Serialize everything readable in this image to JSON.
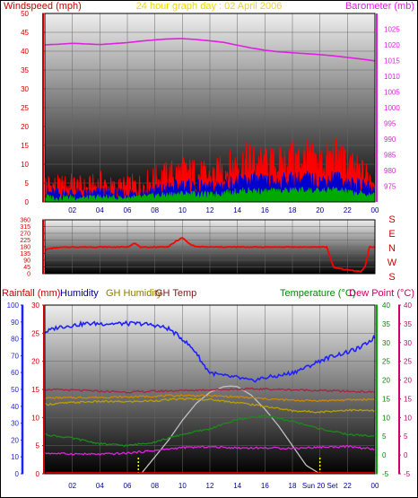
{
  "chart_data": [
    {
      "panel": "top",
      "type": "line",
      "title": "24 hour graph day : 02 April 2006",
      "left_axis_label": "Windspeed (mph)",
      "right_axis_label": "Barometer (mb)",
      "left_axis": {
        "range": [
          0,
          50
        ],
        "ticks": [
          0,
          5,
          10,
          15,
          20,
          25,
          30,
          35,
          40,
          45,
          50
        ]
      },
      "right_axis": {
        "range": [
          970,
          1030
        ],
        "ticks": [
          975,
          980,
          985,
          990,
          995,
          1000,
          1005,
          1010,
          1015,
          1020,
          1025
        ]
      },
      "x_ticks": [
        "02",
        "04",
        "06",
        "08",
        "10",
        "12",
        "14",
        "16",
        "18",
        "20",
        "22",
        "00"
      ],
      "grid": true,
      "series": [
        {
          "axis": "right",
          "color": "#e020e0",
          "x": [
            0,
            1,
            2,
            3,
            4,
            5,
            6,
            7,
            8,
            9,
            10,
            11,
            12,
            13,
            14,
            15,
            16,
            17,
            18,
            19,
            20,
            21,
            22,
            23,
            24
          ],
          "values": [
            1020.0,
            1020.2,
            1020.5,
            1020.3,
            1020.1,
            1020.4,
            1020.7,
            1021.2,
            1021.6,
            1021.9,
            1022.0,
            1021.7,
            1021.3,
            1020.8,
            1019.9,
            1019.0,
            1018.3,
            1017.8,
            1017.5,
            1017.2,
            1016.9,
            1016.5,
            1016.0,
            1015.5,
            1014.9
          ]
        },
        {
          "axis": "left",
          "color": "#ff0000",
          "x": [
            0,
            1,
            2,
            3,
            4,
            5,
            6,
            7,
            8,
            9,
            10,
            11,
            12,
            13,
            14,
            15,
            16,
            17,
            18,
            19,
            20,
            21,
            22,
            23,
            24
          ],
          "values": [
            4.5,
            3.5,
            4.0,
            3.0,
            4.5,
            3.0,
            3.5,
            4.0,
            5.5,
            6.5,
            7.5,
            7.0,
            6.0,
            8.0,
            9.5,
            10.5,
            9.0,
            9.5,
            10.5,
            11.0,
            9.5,
            11.5,
            9.0,
            7.0,
            6.0
          ]
        },
        {
          "axis": "left",
          "color": "#0000cc",
          "x": [
            0,
            1,
            2,
            3,
            4,
            5,
            6,
            7,
            8,
            9,
            10,
            11,
            12,
            13,
            14,
            15,
            16,
            17,
            18,
            19,
            20,
            21,
            22,
            23,
            24
          ],
          "values": [
            2.5,
            2.0,
            2.2,
            1.8,
            2.4,
            1.8,
            2.0,
            2.3,
            3.0,
            3.6,
            4.2,
            4.0,
            3.5,
            4.6,
            5.2,
            5.8,
            5.0,
            5.3,
            5.8,
            6.0,
            5.2,
            6.3,
            5.0,
            4.0,
            3.4
          ]
        },
        {
          "axis": "left",
          "color": "#00aa00",
          "x": [
            0,
            1,
            2,
            3,
            4,
            5,
            6,
            7,
            8,
            9,
            10,
            11,
            12,
            13,
            14,
            15,
            16,
            17,
            18,
            19,
            20,
            21,
            22,
            23,
            24
          ],
          "values": [
            1.2,
            1.0,
            1.1,
            0.9,
            1.2,
            0.9,
            1.0,
            1.1,
            1.5,
            1.8,
            2.1,
            2.0,
            1.7,
            2.3,
            2.6,
            2.9,
            2.5,
            2.7,
            2.9,
            3.0,
            2.6,
            3.1,
            2.5,
            2.0,
            1.7
          ]
        }
      ]
    },
    {
      "panel": "middle",
      "type": "line",
      "left_axis": {
        "range": [
          0,
          360
        ],
        "ticks": [
          0,
          45,
          90,
          135,
          180,
          225,
          270,
          315,
          360
        ]
      },
      "compass": [
        "S",
        "E",
        "N",
        "W",
        "S"
      ],
      "series": [
        {
          "color": "#ff0000",
          "name": "",
          "x": [
            0,
            0.5,
            1,
            2,
            3,
            4,
            5,
            6,
            6.5,
            7,
            8,
            9,
            9.5,
            10,
            10.5,
            11,
            12,
            13,
            14,
            15,
            16,
            17,
            18,
            19,
            20,
            20.5,
            21,
            22,
            23,
            23.3,
            23.6,
            24
          ],
          "values": [
            160,
            170,
            175,
            178,
            178,
            178,
            178,
            178,
            205,
            175,
            178,
            180,
            215,
            240,
            200,
            180,
            178,
            178,
            178,
            178,
            178,
            178,
            178,
            178,
            178,
            178,
            40,
            25,
            15,
            50,
            178,
            178
          ]
        }
      ]
    },
    {
      "panel": "bottom",
      "type": "line",
      "labels": [
        "Rainfall (mm)",
        "Humidity",
        "GH Humidity",
        "GH Temp",
        "Temperature (°C)",
        "Dew Point (°C)"
      ],
      "axis_humidity": {
        "range": [
          0,
          100
        ],
        "ticks": [
          0,
          10,
          20,
          30,
          40,
          50,
          60,
          70,
          80,
          90,
          100
        ]
      },
      "axis_rain": {
        "range": [
          0,
          30
        ],
        "ticks": [
          0,
          5,
          10,
          15,
          20,
          25,
          30
        ]
      },
      "axis_temp": {
        "range": [
          -5,
          40
        ],
        "ticks": [
          -5,
          0,
          5,
          10,
          15,
          20,
          25,
          30,
          35,
          40
        ]
      },
      "x_ticks": [
        "02",
        "04",
        "06",
        "08",
        "10",
        "12",
        "14",
        "16",
        "18",
        "Sun 20 Set",
        "22",
        "00"
      ],
      "series": [
        {
          "color": "#2020ff",
          "axis": "humidity",
          "x": [
            0,
            1,
            2,
            3,
            4,
            5,
            6,
            7,
            8,
            9,
            10,
            11,
            11.5,
            12,
            13,
            14,
            15,
            16,
            17,
            18,
            19,
            20,
            21,
            22,
            23,
            24
          ],
          "values": [
            84,
            87,
            88,
            89,
            89,
            89,
            89,
            89,
            88,
            86,
            80,
            72,
            65,
            60,
            58,
            57,
            55,
            57,
            58,
            60,
            63,
            67,
            70,
            72,
            75,
            81
          ]
        },
        {
          "color": "#c0c0c0",
          "axis": "rain",
          "x": [
            7,
            8,
            9,
            10,
            11,
            12,
            13,
            13.5,
            14,
            15,
            16,
            17,
            18,
            19,
            20
          ],
          "values": [
            0,
            3,
            6,
            9.5,
            12.5,
            14.5,
            15.5,
            15.6,
            15.5,
            14,
            11.5,
            8.5,
            5,
            1.5,
            0
          ]
        },
        {
          "color": "#aa2244",
          "axis": "temp",
          "x": [
            0,
            2,
            4,
            6,
            8,
            10,
            12,
            14,
            16,
            18,
            20,
            22,
            24
          ],
          "values": [
            17.5,
            17.3,
            17.0,
            16.8,
            17.0,
            17.2,
            17.4,
            17.6,
            17.6,
            17.4,
            17.2,
            17.0,
            16.8
          ]
        },
        {
          "color": "#b8a000",
          "axis": "temp",
          "x": [
            0,
            2,
            4,
            6,
            8,
            10,
            12,
            14,
            16,
            18,
            20,
            22,
            24
          ],
          "values": [
            13.5,
            14.0,
            14.3,
            14.2,
            14.5,
            15.0,
            14.8,
            14.0,
            13.0,
            11.8,
            11.5,
            12.0,
            11.8
          ]
        },
        {
          "color": "#cc8800",
          "axis": "temp",
          "x": [
            0,
            2,
            4,
            6,
            8,
            10,
            12,
            14,
            16,
            18,
            20,
            22,
            24
          ],
          "values": [
            15.2,
            15.3,
            15.4,
            15.5,
            15.7,
            15.9,
            15.8,
            15.5,
            15.0,
            14.6,
            14.5,
            14.7,
            14.9
          ]
        },
        {
          "color": "#1a8a1a",
          "axis": "temp",
          "x": [
            0,
            2,
            4,
            6,
            8,
            10,
            12,
            14,
            16,
            18,
            20,
            22,
            24
          ],
          "values": [
            5.5,
            4.5,
            3.0,
            2.5,
            3.5,
            5.5,
            7.0,
            9.5,
            10.5,
            9.0,
            7.0,
            5.5,
            5.0
          ]
        },
        {
          "color": "#dd22dd",
          "axis": "temp",
          "x": [
            0,
            2,
            4,
            6,
            8,
            10,
            12,
            14,
            16,
            18,
            20,
            22,
            24
          ],
          "values": [
            0.5,
            0.3,
            0.2,
            0.5,
            1.2,
            2.0,
            2.2,
            1.9,
            1.9,
            1.8,
            2.1,
            2.3,
            1.5
          ]
        }
      ],
      "markers": [
        {
          "x": 6.8,
          "color": "#ffff00"
        },
        {
          "x": 20.0,
          "color": "#ffff00"
        }
      ]
    }
  ]
}
